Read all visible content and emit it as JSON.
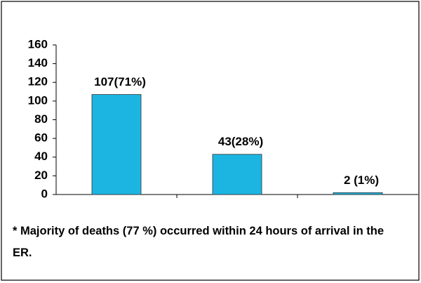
{
  "chart_data": {
    "type": "bar",
    "categories": [
      null,
      null,
      null
    ],
    "values": [
      107,
      43,
      2
    ],
    "value_labels": [
      "107(71%)",
      "43(28%)",
      "2 (1%)"
    ],
    "color": "#1cb5e2",
    "ylim": [
      0,
      160
    ],
    "yticks": [
      0,
      20,
      40,
      60,
      80,
      100,
      120,
      140,
      160
    ],
    "grid": false,
    "annotation": "* Majority of deaths (77 %) occurred within 24 hours of arrival in the ER."
  }
}
